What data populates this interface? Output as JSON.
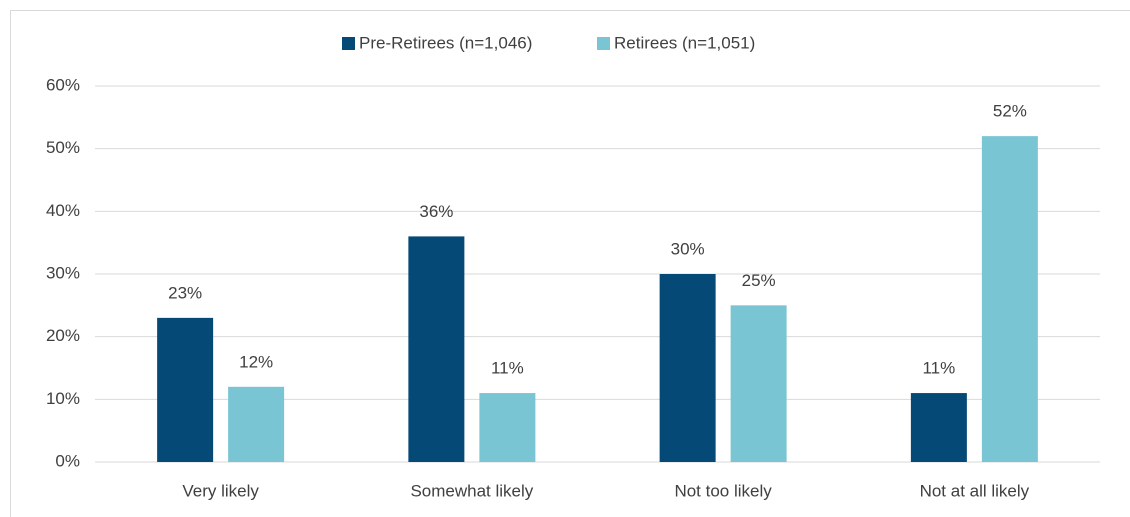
{
  "chart_data": {
    "type": "bar",
    "categories": [
      "Very likely",
      "Somewhat likely",
      "Not too likely",
      "Not at all likely"
    ],
    "series": [
      {
        "name": "Pre-Retirees (n=1,046)",
        "color": "#054a77",
        "values": [
          23,
          36,
          30,
          11
        ],
        "value_labels": [
          "23%",
          "36%",
          "30%",
          "11%"
        ]
      },
      {
        "name": "Retirees (n=1,051)",
        "color": "#7ac5d4",
        "values": [
          12,
          11,
          25,
          52
        ],
        "value_labels": [
          "12%",
          "11%",
          "25%",
          "52%"
        ]
      }
    ],
    "ylim": [
      0,
      60
    ],
    "yticks": [
      {
        "value": 0,
        "label": "0%"
      },
      {
        "value": 10,
        "label": "10%"
      },
      {
        "value": 20,
        "label": "20%"
      },
      {
        "value": 30,
        "label": "30%"
      },
      {
        "value": 40,
        "label": "40%"
      },
      {
        "value": 50,
        "label": "50%"
      },
      {
        "value": 60,
        "label": "60%"
      }
    ],
    "grid": true,
    "legend": "top"
  }
}
